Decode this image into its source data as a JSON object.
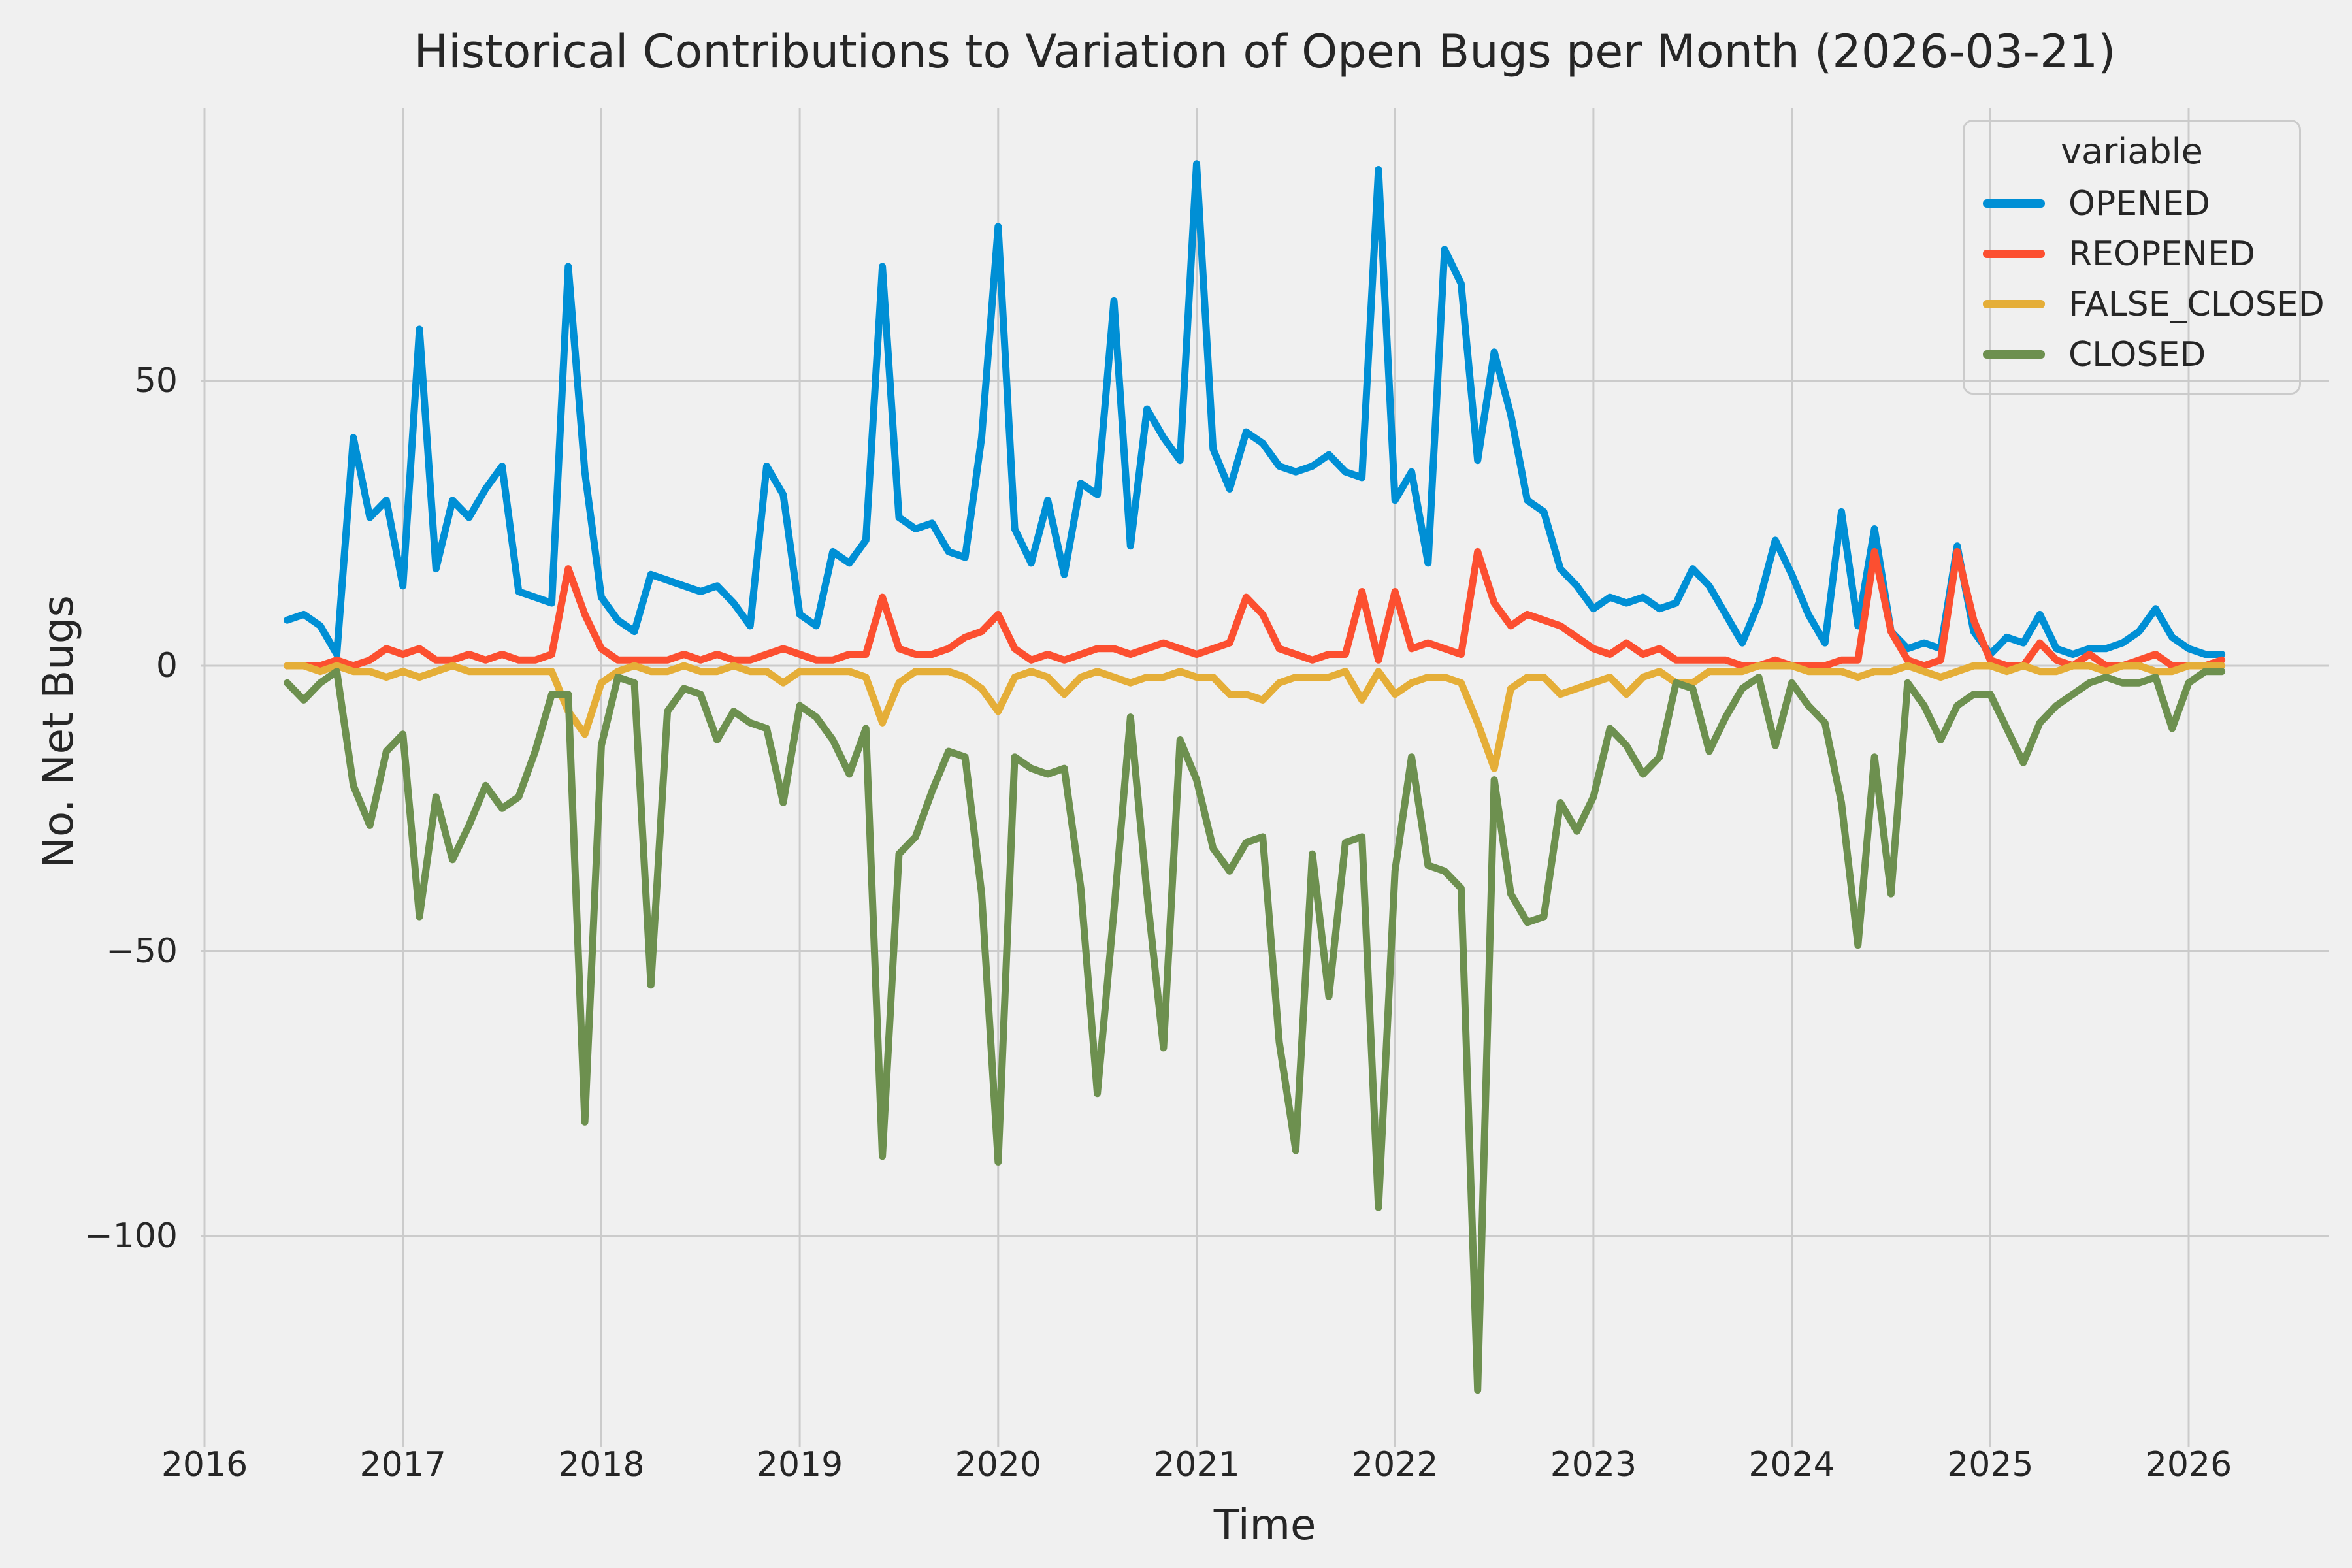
{
  "style": {
    "background": "#f0f0f0",
    "grid_color": "#cbcbcb",
    "text_color": "#262626",
    "line_width": 11
  },
  "chart_data": {
    "type": "line",
    "title": "Historical Contributions to Variation of Open Bugs per Month (2026-03-21)",
    "xlabel": "Time",
    "ylabel": "No. Net Bugs",
    "legend_title": "variable",
    "legend_position": "upper right",
    "grid": true,
    "frequency": "monthly",
    "x_tick_labels": [
      "2016",
      "2017",
      "2018",
      "2019",
      "2020",
      "2021",
      "2022",
      "2023",
      "2024",
      "2025",
      "2026"
    ],
    "y_ticks": [
      {
        "value": 50,
        "label": "50"
      },
      {
        "value": 0,
        "label": "0"
      },
      {
        "value": -50,
        "label": "−50"
      },
      {
        "value": -100,
        "label": "−100"
      }
    ],
    "ylim": [
      -135,
      97
    ],
    "x_months": [
      "2016-06",
      "2016-07",
      "2016-08",
      "2016-09",
      "2016-10",
      "2016-11",
      "2016-12",
      "2017-01",
      "2017-02",
      "2017-03",
      "2017-04",
      "2017-05",
      "2017-06",
      "2017-07",
      "2017-08",
      "2017-09",
      "2017-10",
      "2017-11",
      "2017-12",
      "2018-01",
      "2018-02",
      "2018-03",
      "2018-04",
      "2018-05",
      "2018-06",
      "2018-07",
      "2018-08",
      "2018-09",
      "2018-10",
      "2018-11",
      "2018-12",
      "2019-01",
      "2019-02",
      "2019-03",
      "2019-04",
      "2019-05",
      "2019-06",
      "2019-07",
      "2019-08",
      "2019-09",
      "2019-10",
      "2019-11",
      "2019-12",
      "2020-01",
      "2020-02",
      "2020-03",
      "2020-04",
      "2020-05",
      "2020-06",
      "2020-07",
      "2020-08",
      "2020-09",
      "2020-10",
      "2020-11",
      "2020-12",
      "2021-01",
      "2021-02",
      "2021-03",
      "2021-04",
      "2021-05",
      "2021-06",
      "2021-07",
      "2021-08",
      "2021-09",
      "2021-10",
      "2021-11",
      "2021-12",
      "2022-01",
      "2022-02",
      "2022-03",
      "2022-04",
      "2022-05",
      "2022-06",
      "2022-07",
      "2022-08",
      "2022-09",
      "2022-10",
      "2022-11",
      "2022-12",
      "2023-01",
      "2023-02",
      "2023-03",
      "2023-04",
      "2023-05",
      "2023-06",
      "2023-07",
      "2023-08",
      "2023-09",
      "2023-10",
      "2023-11",
      "2023-12",
      "2024-01",
      "2024-02",
      "2024-03",
      "2024-04",
      "2024-05",
      "2024-06",
      "2024-07",
      "2024-08",
      "2024-09",
      "2024-10",
      "2024-11",
      "2024-12",
      "2025-01",
      "2025-02",
      "2025-03",
      "2025-04",
      "2025-05",
      "2025-06",
      "2025-07",
      "2025-08",
      "2025-09",
      "2025-10",
      "2025-11",
      "2025-12",
      "2026-01",
      "2026-02",
      "2026-03"
    ],
    "series": [
      {
        "name": "OPENED",
        "color": "#008fd5",
        "values": [
          8,
          9,
          7,
          2,
          40,
          26,
          29,
          14,
          59,
          17,
          29,
          26,
          31,
          35,
          13,
          12,
          11,
          70,
          34,
          12,
          8,
          6,
          16,
          15,
          14,
          13,
          14,
          11,
          7,
          35,
          30,
          9,
          7,
          20,
          18,
          22,
          70,
          26,
          24,
          25,
          20,
          19,
          40,
          77,
          24,
          18,
          29,
          16,
          32,
          30,
          64,
          21,
          45,
          40,
          36,
          88,
          38,
          31,
          41,
          39,
          35,
          34,
          35,
          37,
          34,
          33,
          87,
          29,
          34,
          18,
          73,
          67,
          36,
          55,
          44,
          29,
          27,
          17,
          14,
          10,
          12,
          11,
          12,
          10,
          11,
          17,
          14,
          9,
          4,
          11,
          22,
          16,
          9,
          4,
          27,
          7,
          24,
          6,
          3,
          4,
          3,
          21,
          6,
          2,
          5,
          4,
          9,
          3,
          2,
          3,
          3,
          4,
          6,
          10,
          5,
          3,
          2,
          2
        ]
      },
      {
        "name": "REOPENED",
        "color": "#fc4f30",
        "values": [
          0,
          0,
          0,
          1,
          0,
          1,
          3,
          2,
          3,
          1,
          1,
          2,
          1,
          2,
          1,
          1,
          2,
          17,
          9,
          3,
          1,
          1,
          1,
          1,
          2,
          1,
          2,
          1,
          1,
          2,
          3,
          2,
          1,
          1,
          2,
          2,
          12,
          3,
          2,
          2,
          3,
          5,
          6,
          9,
          3,
          1,
          2,
          1,
          2,
          3,
          3,
          2,
          3,
          4,
          3,
          2,
          3,
          4,
          12,
          9,
          3,
          2,
          1,
          2,
          2,
          13,
          1,
          13,
          3,
          4,
          3,
          2,
          20,
          11,
          7,
          9,
          8,
          7,
          5,
          3,
          2,
          4,
          2,
          3,
          1,
          1,
          1,
          1,
          0,
          0,
          1,
          0,
          0,
          0,
          1,
          1,
          20,
          6,
          1,
          0,
          1,
          20,
          8,
          1,
          0,
          0,
          4,
          1,
          0,
          2,
          0,
          0,
          1,
          2,
          0,
          0,
          0,
          1
        ]
      },
      {
        "name": "FALSE_CLOSED",
        "color": "#e5ae38",
        "values": [
          0,
          0,
          -1,
          0,
          -1,
          -1,
          -2,
          -1,
          -2,
          -1,
          0,
          -1,
          -1,
          -1,
          -1,
          -1,
          -1,
          -8,
          -12,
          -3,
          -1,
          0,
          -1,
          -1,
          0,
          -1,
          -1,
          0,
          -1,
          -1,
          -3,
          -1,
          -1,
          -1,
          -1,
          -2,
          -10,
          -3,
          -1,
          -1,
          -1,
          -2,
          -4,
          -8,
          -2,
          -1,
          -2,
          -5,
          -2,
          -1,
          -2,
          -3,
          -2,
          -2,
          -1,
          -2,
          -2,
          -5,
          -5,
          -6,
          -3,
          -2,
          -2,
          -2,
          -1,
          -6,
          -1,
          -5,
          -3,
          -2,
          -2,
          -3,
          -10,
          -18,
          -4,
          -2,
          -2,
          -5,
          -4,
          -3,
          -2,
          -5,
          -2,
          -1,
          -3,
          -3,
          -1,
          -1,
          -1,
          0,
          0,
          0,
          -1,
          -1,
          -1,
          -2,
          -1,
          -1,
          0,
          -1,
          -2,
          -1,
          0,
          0,
          -1,
          0,
          -1,
          -1,
          0,
          0,
          -1,
          0,
          0,
          -1,
          -1,
          0,
          0,
          0
        ]
      },
      {
        "name": "CLOSED",
        "color": "#6d904f",
        "values": [
          -3,
          -6,
          -3,
          -1,
          -21,
          -28,
          -15,
          -12,
          -44,
          -23,
          -34,
          -28,
          -21,
          -25,
          -23,
          -15,
          -5,
          -5,
          -80,
          -14,
          -2,
          -3,
          -56,
          -8,
          -4,
          -5,
          -13,
          -8,
          -10,
          -11,
          -24,
          -7,
          -9,
          -13,
          -19,
          -11,
          -86,
          -33,
          -30,
          -22,
          -15,
          -16,
          -40,
          -87,
          -16,
          -18,
          -19,
          -18,
          -39,
          -75,
          -43,
          -9,
          -40,
          -67,
          -13,
          -20,
          -32,
          -36,
          -31,
          -30,
          -66,
          -85,
          -33,
          -58,
          -31,
          -30,
          -95,
          -36,
          -16,
          -35,
          -36,
          -39,
          -127,
          -20,
          -40,
          -45,
          -44,
          -24,
          -29,
          -23,
          -11,
          -14,
          -19,
          -16,
          -3,
          -4,
          -15,
          -9,
          -4,
          -2,
          -14,
          -3,
          -7,
          -10,
          -24,
          -49,
          -16,
          -40,
          -3,
          -7,
          -13,
          -7,
          -5,
          -5,
          -11,
          -17,
          -10,
          -7,
          -5,
          -3,
          -2,
          -3,
          -3,
          -2,
          -11,
          -3,
          -1,
          -1
        ]
      }
    ]
  }
}
